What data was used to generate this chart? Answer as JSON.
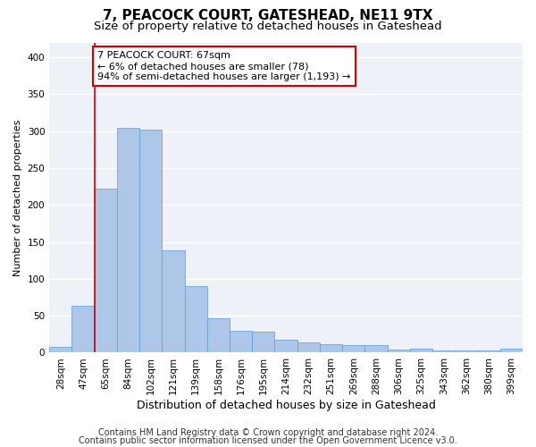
{
  "title": "7, PEACOCK COURT, GATESHEAD, NE11 9TX",
  "subtitle": "Size of property relative to detached houses in Gateshead",
  "xlabel": "Distribution of detached houses by size in Gateshead",
  "ylabel": "Number of detached properties",
  "categories": [
    "28sqm",
    "47sqm",
    "65sqm",
    "84sqm",
    "102sqm",
    "121sqm",
    "139sqm",
    "158sqm",
    "176sqm",
    "195sqm",
    "214sqm",
    "232sqm",
    "251sqm",
    "269sqm",
    "288sqm",
    "306sqm",
    "325sqm",
    "343sqm",
    "362sqm",
    "380sqm",
    "399sqm"
  ],
  "values": [
    8,
    63,
    222,
    305,
    302,
    139,
    90,
    46,
    30,
    29,
    18,
    14,
    11,
    10,
    10,
    4,
    5,
    3,
    3,
    3,
    5
  ],
  "bar_color": "#aec6e8",
  "bar_edge_color": "#5b9bd5",
  "vline_color": "#cc0000",
  "vline_x_index": 1.5,
  "annotation_text": "7 PEACOCK COURT: 67sqm\n← 6% of detached houses are smaller (78)\n94% of semi-detached houses are larger (1,193) →",
  "annotation_box_color": "#ffffff",
  "annotation_box_edgecolor": "#cc0000",
  "ylim": [
    0,
    420
  ],
  "yticks": [
    0,
    50,
    100,
    150,
    200,
    250,
    300,
    350,
    400
  ],
  "footer1": "Contains HM Land Registry data © Crown copyright and database right 2024.",
  "footer2": "Contains public sector information licensed under the Open Government Licence v3.0.",
  "background_color": "#eef2f8",
  "grid_color": "#ffffff",
  "fig_background": "#ffffff",
  "title_fontsize": 11,
  "subtitle_fontsize": 9.5,
  "xlabel_fontsize": 9,
  "ylabel_fontsize": 8,
  "tick_fontsize": 7.5,
  "footer_fontsize": 7,
  "annotation_fontsize": 8
}
